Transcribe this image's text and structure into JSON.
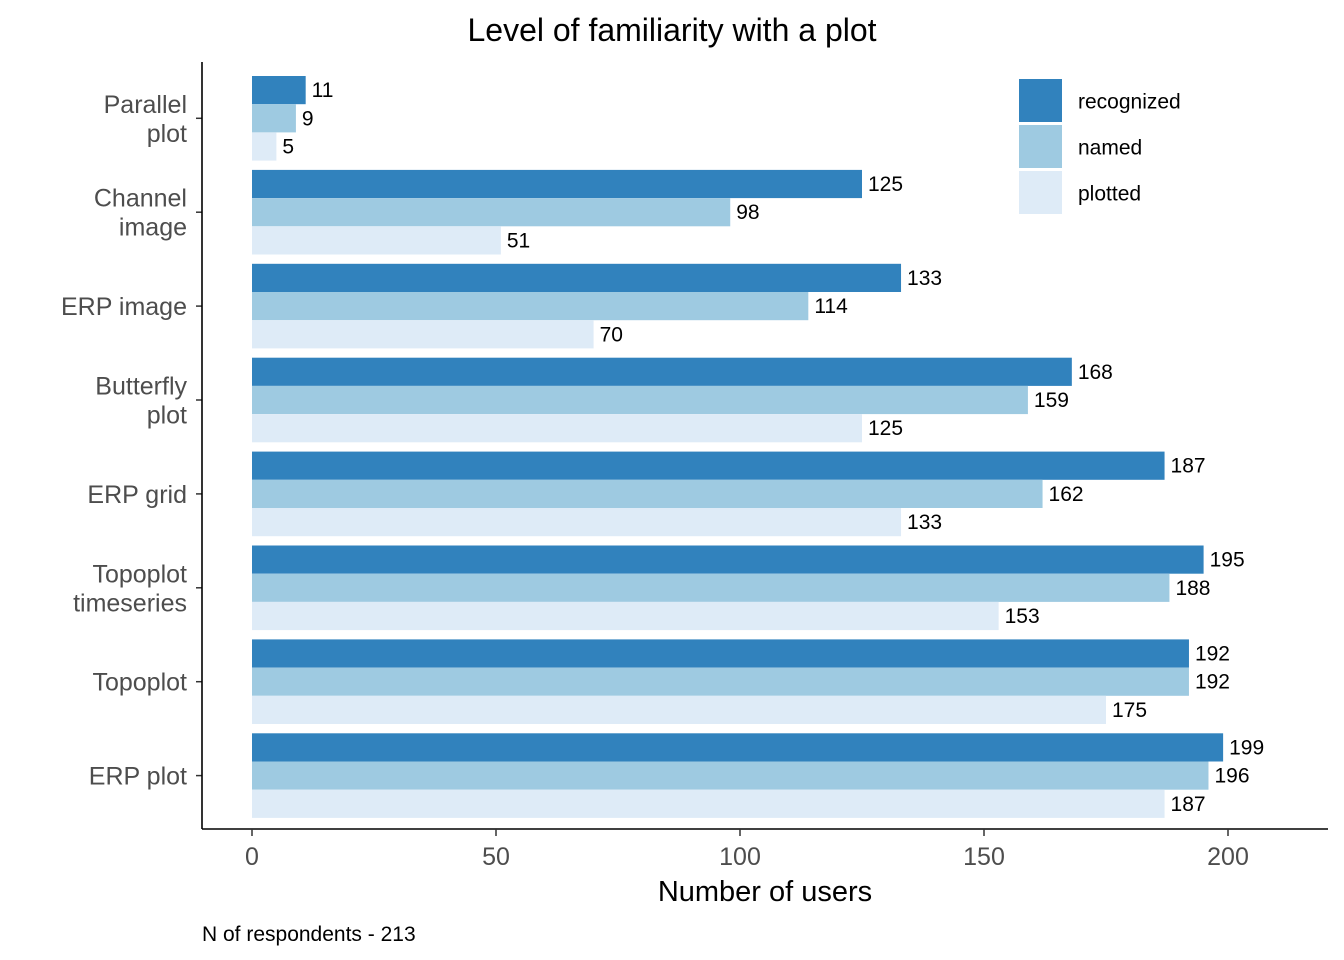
{
  "chart_data": {
    "type": "bar",
    "orientation": "horizontal",
    "title": "Level of familiarity with a plot",
    "xlabel": "Number of users",
    "ylabel": "",
    "caption": "N of respondents - 213",
    "xlim": [
      0,
      213
    ],
    "x_ticks": [
      0,
      50,
      100,
      150,
      200
    ],
    "x_tick_labels": [
      "0",
      "50",
      "100",
      "150",
      "200"
    ],
    "categories": [
      [
        "Parallel",
        "plot"
      ],
      [
        "Channel",
        "image"
      ],
      [
        "ERP image"
      ],
      [
        "Butterfly",
        "plot"
      ],
      [
        "ERP grid"
      ],
      [
        "Topoplot",
        "timeseries"
      ],
      [
        "Topoplot"
      ],
      [
        "ERP plot"
      ]
    ],
    "series": [
      {
        "name": "recognized",
        "color": "#3182bd",
        "values": [
          11,
          125,
          133,
          168,
          187,
          195,
          192,
          199
        ]
      },
      {
        "name": "named",
        "color": "#9ecae1",
        "values": [
          9,
          98,
          114,
          159,
          162,
          188,
          192,
          196
        ]
      },
      {
        "name": "plotted",
        "color": "#deebf7",
        "values": [
          5,
          51,
          70,
          125,
          133,
          153,
          175,
          187
        ]
      }
    ],
    "legend_position": "top-right",
    "grid": false
  }
}
